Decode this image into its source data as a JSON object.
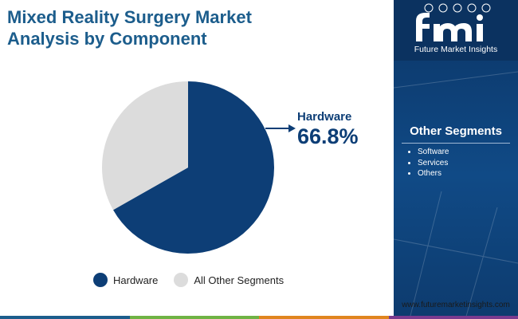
{
  "title_lines": [
    "Mixed Reality Surgery Market",
    "Analysis by Component"
  ],
  "chart_data": {
    "type": "pie",
    "title": "Mixed Reality Surgery Market Analysis by Component",
    "slices": [
      {
        "label": "Hardware",
        "value": 66.8,
        "color": "#0d3e76"
      },
      {
        "label": "All Other Segments",
        "value": 33.2,
        "color": "#dcdcdc"
      }
    ],
    "annotation": {
      "label": "Hardware",
      "value_text": "66.8%"
    },
    "legend": {
      "position": "bottom",
      "items": [
        "Hardware",
        "All Other Segments"
      ]
    }
  },
  "sidebar": {
    "logo_text": "Future Market Insights",
    "segments_title": "Other Segments",
    "segments": [
      "Software",
      "Services",
      "Others"
    ]
  },
  "footer_url": "www.futuremarketinsights.com",
  "colors": {
    "title": "#1c5d8c",
    "hardware": "#0d3e76",
    "other": "#dcdcdc",
    "panel": "#0b3566",
    "bar": [
      "#1c5d8c",
      "#6fb344",
      "#e0851f",
      "#7a3b8f"
    ]
  }
}
